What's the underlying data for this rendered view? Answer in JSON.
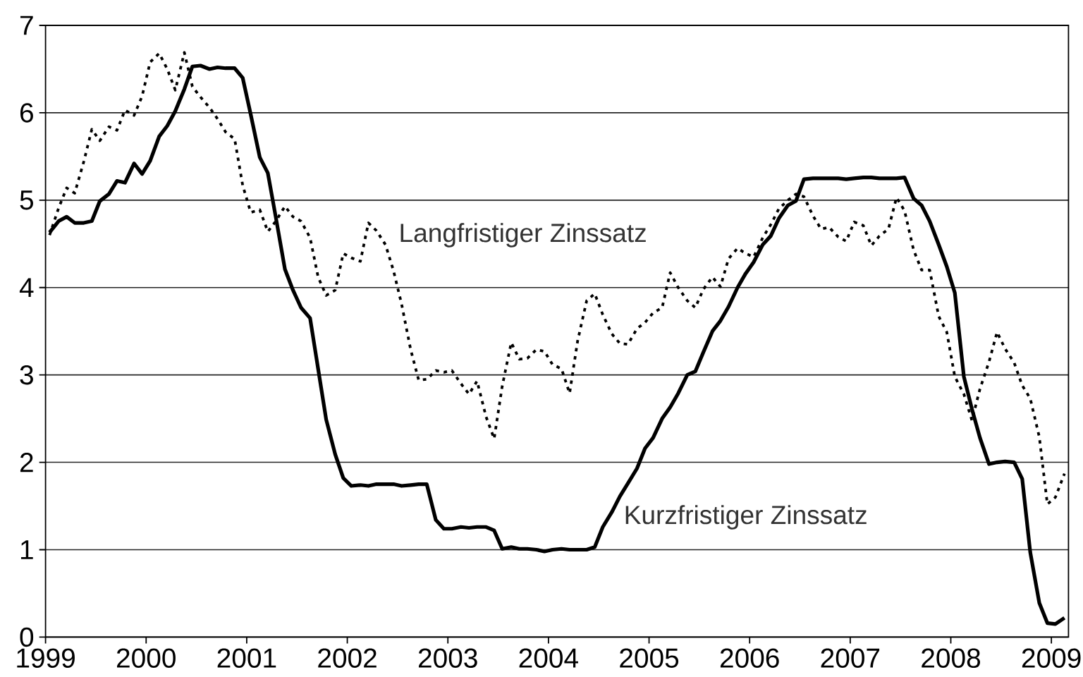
{
  "chart_data": {
    "type": "line",
    "x": [
      1999.04,
      1999.13,
      1999.21,
      1999.29,
      1999.38,
      1999.46,
      1999.54,
      1999.63,
      1999.71,
      1999.79,
      1999.88,
      1999.96,
      2000.04,
      2000.13,
      2000.21,
      2000.29,
      2000.38,
      2000.46,
      2000.54,
      2000.63,
      2000.71,
      2000.79,
      2000.88,
      2000.96,
      2001.04,
      2001.13,
      2001.21,
      2001.29,
      2001.38,
      2001.46,
      2001.54,
      2001.63,
      2001.71,
      2001.79,
      2001.88,
      2001.96,
      2002.04,
      2002.13,
      2002.21,
      2002.29,
      2002.38,
      2002.46,
      2002.54,
      2002.63,
      2002.71,
      2002.79,
      2002.88,
      2002.96,
      2003.04,
      2003.13,
      2003.21,
      2003.29,
      2003.38,
      2003.46,
      2003.54,
      2003.63,
      2003.71,
      2003.79,
      2003.88,
      2003.96,
      2004.04,
      2004.13,
      2004.21,
      2004.29,
      2004.38,
      2004.46,
      2004.54,
      2004.63,
      2004.71,
      2004.79,
      2004.88,
      2004.96,
      2005.04,
      2005.13,
      2005.21,
      2005.29,
      2005.38,
      2005.46,
      2005.54,
      2005.63,
      2005.71,
      2005.79,
      2005.88,
      2005.96,
      2006.04,
      2006.13,
      2006.21,
      2006.29,
      2006.38,
      2006.46,
      2006.54,
      2006.63,
      2006.71,
      2006.79,
      2006.88,
      2006.96,
      2007.04,
      2007.13,
      2007.21,
      2007.29,
      2007.38,
      2007.46,
      2007.54,
      2007.63,
      2007.71,
      2007.79,
      2007.88,
      2007.96,
      2008.04,
      2008.13,
      2008.21,
      2008.29,
      2008.38,
      2008.46,
      2008.54,
      2008.63,
      2008.71,
      2008.79,
      2008.88,
      2008.96,
      2009.04,
      2009.13
    ],
    "xlim": [
      1999,
      2009.17
    ],
    "xticks": [
      1999,
      2000,
      2001,
      2002,
      2003,
      2004,
      2005,
      2006,
      2007,
      2008,
      2009
    ],
    "ylim": [
      0,
      7
    ],
    "yticks": [
      0,
      1,
      2,
      3,
      4,
      5,
      6,
      7
    ],
    "grid": "y",
    "series": [
      {
        "name": "Kurzfristiger Zinssatz",
        "color": "#000000",
        "line_style": "solid",
        "values": [
          4.63,
          4.76,
          4.81,
          4.74,
          4.74,
          4.76,
          4.99,
          5.07,
          5.22,
          5.2,
          5.42,
          5.3,
          5.45,
          5.73,
          5.85,
          6.02,
          6.27,
          6.53,
          6.54,
          6.5,
          6.52,
          6.51,
          6.51,
          6.4,
          5.98,
          5.49,
          5.31,
          4.8,
          4.21,
          3.97,
          3.77,
          3.65,
          3.07,
          2.49,
          2.09,
          1.82,
          1.73,
          1.74,
          1.73,
          1.75,
          1.75,
          1.75,
          1.73,
          1.74,
          1.75,
          1.75,
          1.34,
          1.24,
          1.24,
          1.26,
          1.25,
          1.26,
          1.26,
          1.22,
          1.01,
          1.03,
          1.01,
          1.01,
          1.0,
          0.98,
          1.0,
          1.01,
          1.0,
          1.0,
          1.0,
          1.03,
          1.26,
          1.43,
          1.61,
          1.76,
          1.93,
          2.16,
          2.28,
          2.5,
          2.63,
          2.79,
          3.0,
          3.04,
          3.26,
          3.5,
          3.62,
          3.78,
          4.0,
          4.16,
          4.29,
          4.49,
          4.59,
          4.79,
          4.94,
          4.99,
          5.24,
          5.25,
          5.25,
          5.25,
          5.25,
          5.24,
          5.25,
          5.26,
          5.26,
          5.25,
          5.25,
          5.25,
          5.26,
          5.02,
          4.94,
          4.76,
          4.49,
          4.24,
          3.94,
          2.98,
          2.61,
          2.28,
          1.98,
          2.0,
          2.01,
          2.0,
          1.81,
          0.97,
          0.39,
          0.16,
          0.15,
          0.22
        ]
      },
      {
        "name": "Langfristiger Zinssatz",
        "color": "#000000",
        "line_style": "dotted",
        "values": [
          4.6,
          4.91,
          5.14,
          5.08,
          5.44,
          5.81,
          5.68,
          5.84,
          5.8,
          6.03,
          5.97,
          6.19,
          6.58,
          6.68,
          6.5,
          6.26,
          6.69,
          6.3,
          6.18,
          6.06,
          5.93,
          5.78,
          5.7,
          5.17,
          4.86,
          4.89,
          4.64,
          4.76,
          4.93,
          4.81,
          4.76,
          4.57,
          4.12,
          3.91,
          3.97,
          4.39,
          4.34,
          4.3,
          4.74,
          4.65,
          4.49,
          4.19,
          3.81,
          3.29,
          2.94,
          2.95,
          3.05,
          3.03,
          3.05,
          2.9,
          2.78,
          2.93,
          2.52,
          2.27,
          2.87,
          3.37,
          3.18,
          3.19,
          3.29,
          3.27,
          3.12,
          3.07,
          2.79,
          3.39,
          3.85,
          3.93,
          3.69,
          3.47,
          3.36,
          3.35,
          3.53,
          3.6,
          3.71,
          3.77,
          4.17,
          4.0,
          3.85,
          3.77,
          3.98,
          4.12,
          4.01,
          4.33,
          4.45,
          4.39,
          4.35,
          4.57,
          4.72,
          4.9,
          5.0,
          5.07,
          5.04,
          4.82,
          4.67,
          4.69,
          4.58,
          4.53,
          4.75,
          4.71,
          4.48,
          4.59,
          4.67,
          5.03,
          4.88,
          4.43,
          4.2,
          4.2,
          3.67,
          3.49,
          2.98,
          2.78,
          2.48,
          2.84,
          3.15,
          3.49,
          3.3,
          3.14,
          2.88,
          2.73,
          2.29,
          1.52,
          1.6,
          1.87
        ]
      }
    ]
  }
}
